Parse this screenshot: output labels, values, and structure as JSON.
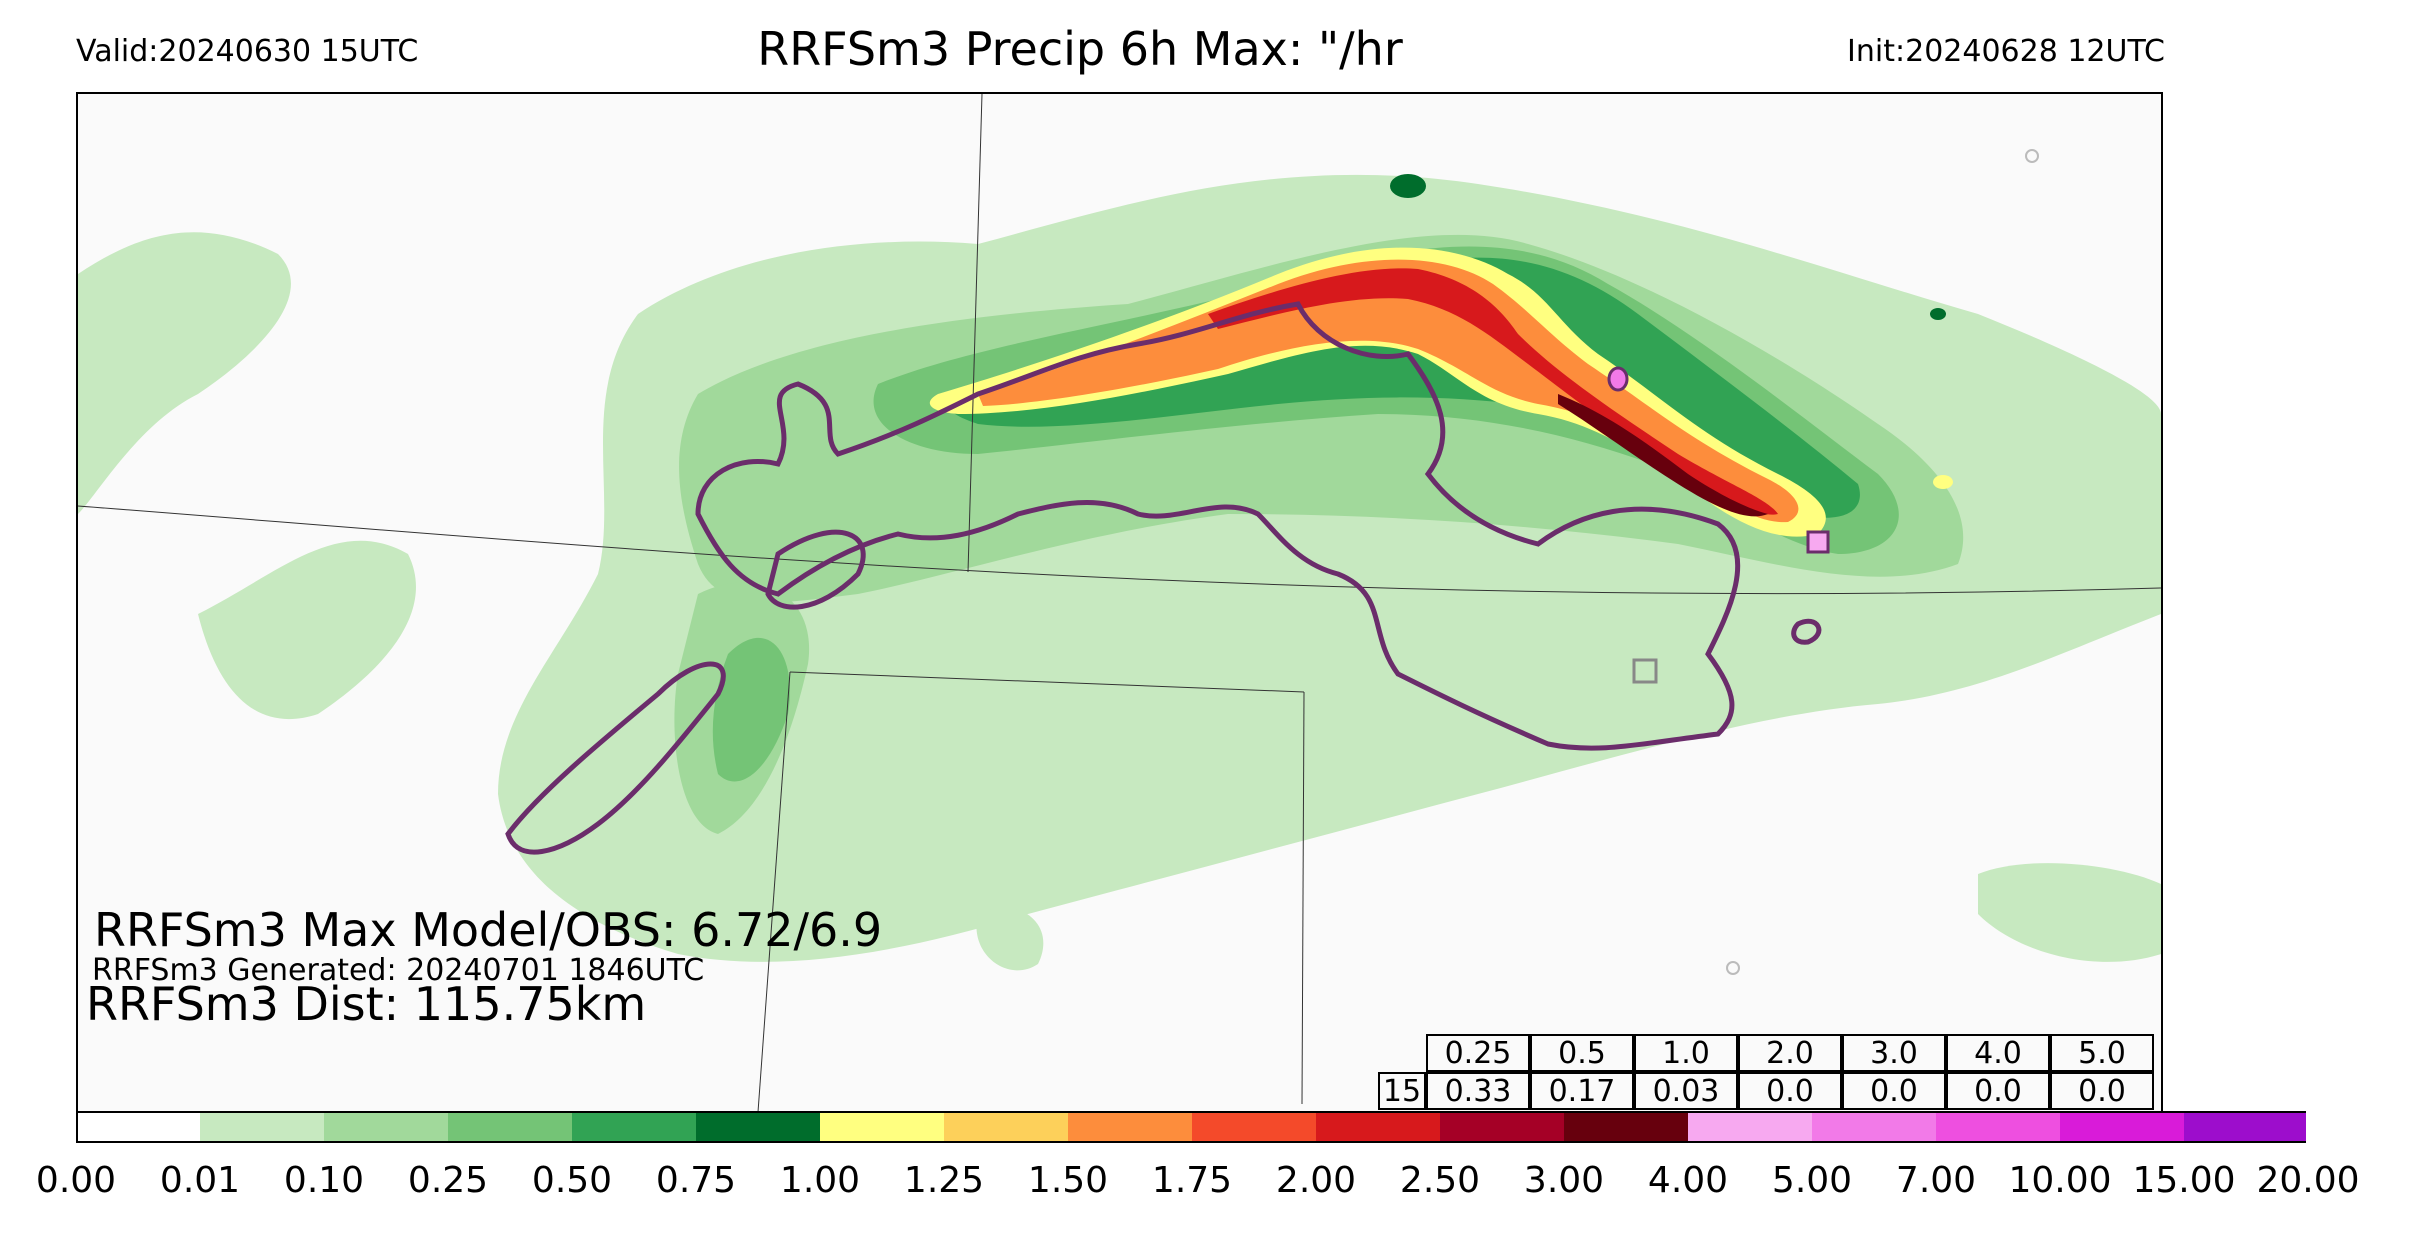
{
  "header": {
    "valid": "Valid:20240630 15UTC",
    "title": "RRFSm3 Precip 6h Max: \"/hr",
    "init": "Init:20240628 12UTC"
  },
  "stats": {
    "max_line": "RRFSm3 Max Model/OBS: 6.72/6.9",
    "generated_line": "RRFSm3 Generated: 20240701 1846UTC",
    "dist_line": "RRFSm3 Dist: 115.75km"
  },
  "score_table": {
    "thresholds": [
      "0.25",
      "0.5",
      "1.0",
      "2.0",
      "3.0",
      "4.0",
      "5.0"
    ],
    "row_label": "15",
    "scores": [
      "0.33",
      "0.17",
      "0.03",
      "0.0",
      "0.0",
      "0.0",
      "0.0"
    ]
  },
  "colorbar": {
    "labels": [
      "0.00",
      "0.01",
      "0.10",
      "0.25",
      "0.50",
      "0.75",
      "1.00",
      "1.25",
      "1.50",
      "1.75",
      "2.00",
      "2.50",
      "3.00",
      "4.00",
      "5.00",
      "7.00",
      "10.00",
      "15.00",
      "20.00"
    ],
    "colors": [
      "#ffffff",
      "#c7e9c0",
      "#a1d99b",
      "#74c476",
      "#31a354",
      "#006d2c",
      "#ffff80",
      "#fdd05a",
      "#fd8d3c",
      "#f44a2a",
      "#d7191c",
      "#a50026",
      "#67000d",
      "#f7a9f0",
      "#f27ae8",
      "#ee4fe0",
      "#d91bd9",
      "#9d0dcc"
    ],
    "extend_color": "#6a0d91"
  },
  "legend_colors": {
    "obs_contour": "#6b2d6b"
  }
}
